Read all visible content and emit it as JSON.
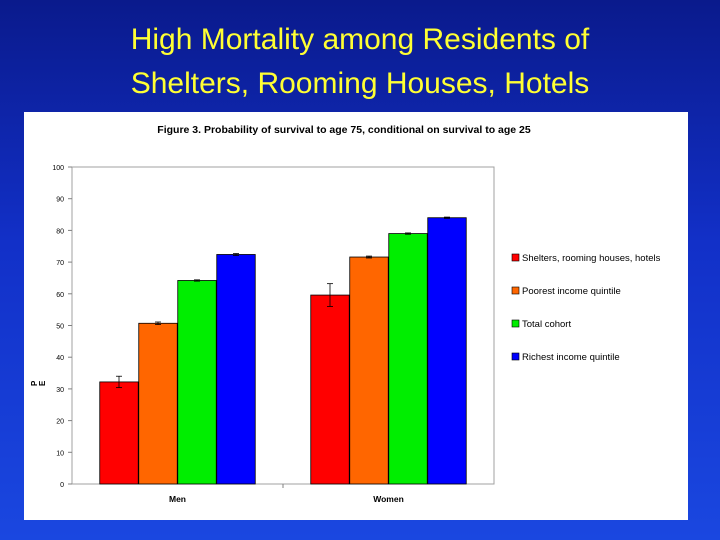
{
  "slide": {
    "title_line1": "High Mortality among Residents of",
    "title_line2": "Shelters, Rooming Houses, Hotels"
  },
  "chart_data": {
    "type": "bar",
    "title": "Figure 3. Probability of survival to age 75, conditional on survival to age 25",
    "xlabel": "",
    "ylabel": "P",
    "ylabel_sub": "E",
    "ylim": [
      0,
      100
    ],
    "yticks": [
      0,
      10,
      20,
      30,
      40,
      50,
      60,
      70,
      80,
      90,
      100
    ],
    "grid": false,
    "legend_position": "right",
    "categories": [
      "Men",
      "Women"
    ],
    "series": [
      {
        "name": "Shelters, rooming houses, hotels",
        "color": "#ff0000",
        "values": [
          32.2,
          59.6
        ],
        "error": [
          1.8,
          3.6
        ]
      },
      {
        "name": "Poorest income quintile",
        "color": "#ff6600",
        "values": [
          50.7,
          71.6
        ],
        "error": [
          0.4,
          0.3
        ]
      },
      {
        "name": "Total cohort",
        "color": "#00ee00",
        "values": [
          64.2,
          79.0
        ],
        "error": [
          0.2,
          0.2
        ]
      },
      {
        "name": "Richest income quintile",
        "color": "#0000ff",
        "values": [
          72.4,
          84.0
        ],
        "error": [
          0.3,
          0.2
        ]
      }
    ]
  }
}
